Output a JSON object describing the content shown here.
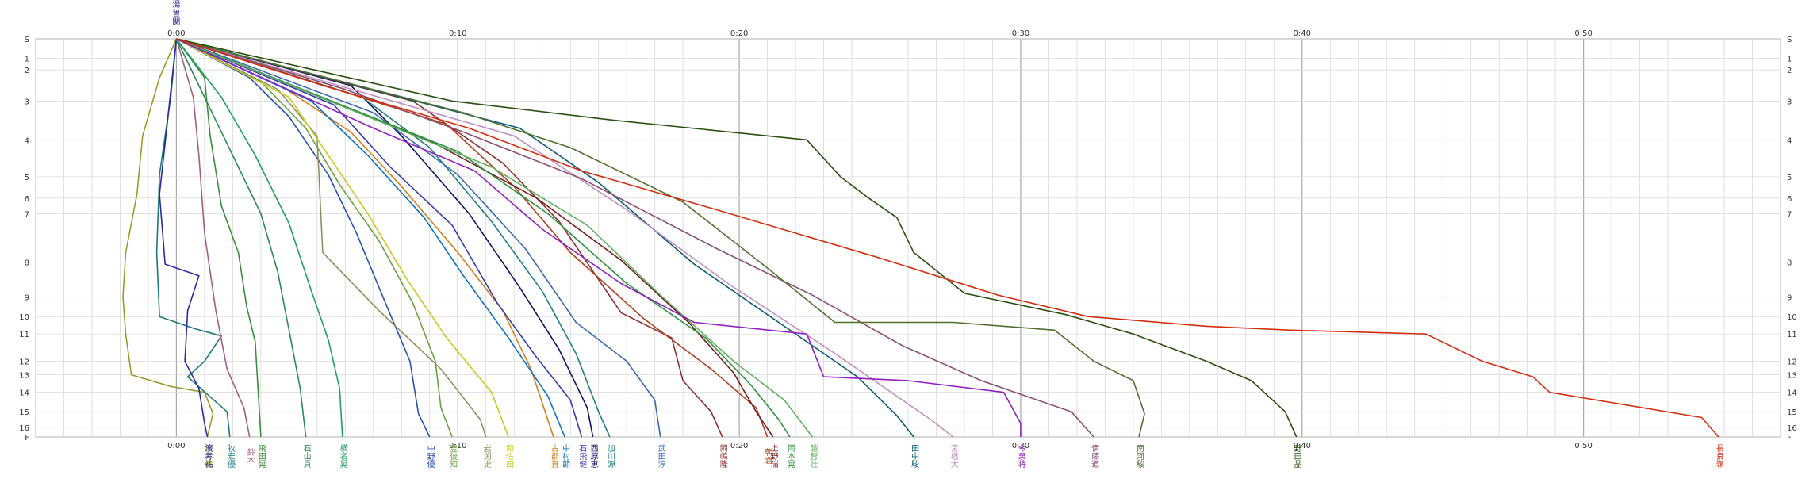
{
  "colors": {
    "background": "#ffffff",
    "grid_major": "#a8a8a8",
    "grid_minor": "#d9d9d9",
    "axis": "#404040",
    "text": "#333333"
  },
  "chart_data": {
    "type": "line",
    "title": "",
    "x_axis": {
      "unit": "minutes (elapsed time, m:ss)",
      "range": [
        -5,
        57
      ],
      "top_ticks": [
        0,
        10,
        20,
        30,
        40,
        50
      ],
      "top_tick_labels": [
        "0:00",
        "0:10",
        "0:20",
        "0:30",
        "0:40",
        "0:50"
      ],
      "bottom_tick_labels": [
        "0:00",
        "0:10",
        "0:20",
        "0:30",
        "0:40",
        "0:50"
      ]
    },
    "y_axis": {
      "unit": "control / station (S = start, F = finish)",
      "categories": [
        "S",
        "1",
        "2",
        "3",
        "4",
        "5",
        "6",
        "7",
        "8",
        "9",
        "10",
        "11",
        "12",
        "13",
        "14",
        "15",
        "16",
        "F"
      ],
      "category_position": [
        0,
        1,
        1.6,
        3.2,
        5.2,
        7.1,
        8.2,
        9.0,
        11.5,
        13.3,
        14.3,
        15.2,
        16.6,
        17.3,
        18.2,
        19.2,
        20.0,
        20.5
      ]
    },
    "grid": true,
    "start_marker_text": [
      "湯",
      "曽",
      "関"
    ],
    "series": [
      {
        "name": "松井健",
        "color": "#9b9b30",
        "points": [
          [
            0,
            0
          ],
          [
            -0.6,
            2
          ],
          [
            -1.2,
            5
          ],
          [
            -1.4,
            8
          ],
          [
            -1.8,
            11
          ],
          [
            -1.9,
            13.3
          ],
          [
            -1.8,
            15.2
          ],
          [
            -1.6,
            17.3
          ],
          [
            -0.2,
            17.9
          ],
          [
            1.0,
            18.2
          ],
          [
            1.3,
            19.3
          ],
          [
            1.1,
            20.5
          ]
        ]
      },
      {
        "name": "牧宏優",
        "color": "#1f7a7a",
        "points": [
          [
            0,
            0
          ],
          [
            -0.2,
            3
          ],
          [
            -0.6,
            7
          ],
          [
            -0.7,
            11
          ],
          [
            -0.6,
            14.3
          ],
          [
            0.6,
            14.9
          ],
          [
            1.6,
            15.3
          ],
          [
            1.0,
            16.6
          ],
          [
            0.4,
            17.4
          ],
          [
            1.8,
            19.2
          ],
          [
            1.9,
            20.5
          ]
        ]
      },
      {
        "name": "濱考祐",
        "color": "#2a2aa0",
        "points": [
          [
            0,
            0
          ],
          [
            -0.3,
            4
          ],
          [
            -0.6,
            8
          ],
          [
            -0.4,
            11.6
          ],
          [
            0.8,
            12.2
          ],
          [
            0.4,
            14
          ],
          [
            0.3,
            16.6
          ],
          [
            0.8,
            18
          ],
          [
            1.0,
            19.8
          ],
          [
            1.1,
            20.5
          ]
        ]
      },
      {
        "name": "飛田晃",
        "color": "#3c8c3c",
        "points": [
          [
            0,
            0
          ],
          [
            1.0,
            2
          ],
          [
            1.2,
            5
          ],
          [
            1.6,
            8.6
          ],
          [
            2.2,
            11
          ],
          [
            2.5,
            13.8
          ],
          [
            2.8,
            15.6
          ],
          [
            2.9,
            18
          ],
          [
            3.0,
            20.5
          ]
        ]
      },
      {
        "name": "鈴木",
        "color": "#a06080",
        "points": [
          [
            0,
            0
          ],
          [
            0.6,
            3
          ],
          [
            0.8,
            6
          ],
          [
            1.0,
            10
          ],
          [
            1.4,
            14
          ],
          [
            1.8,
            17
          ],
          [
            2.4,
            19
          ],
          [
            2.6,
            20.5
          ]
        ]
      },
      {
        "name": "石山貢",
        "color": "#2e8b57",
        "points": [
          [
            0,
            0
          ],
          [
            1.0,
            3
          ],
          [
            2.0,
            6
          ],
          [
            3.0,
            9
          ],
          [
            3.6,
            12
          ],
          [
            4.0,
            15
          ],
          [
            4.4,
            18
          ],
          [
            4.6,
            20.5
          ]
        ]
      },
      {
        "name": "横名晃",
        "color": "#20a060",
        "points": [
          [
            0,
            0
          ],
          [
            1.6,
            3
          ],
          [
            2.8,
            6
          ],
          [
            4.0,
            9.5
          ],
          [
            4.8,
            13
          ],
          [
            5.4,
            15.5
          ],
          [
            5.8,
            18
          ],
          [
            5.9,
            20.5
          ]
        ]
      },
      {
        "name": "中野優",
        "color": "#2a50b0",
        "points": [
          [
            0,
            0
          ],
          [
            2.6,
            2
          ],
          [
            4.0,
            4
          ],
          [
            5.4,
            7
          ],
          [
            6.4,
            10
          ],
          [
            7.4,
            13.5
          ],
          [
            8.3,
            16.6
          ],
          [
            8.6,
            19.3
          ],
          [
            9.0,
            20.5
          ]
        ]
      },
      {
        "name": "豊後知",
        "color": "#6aa040",
        "points": [
          [
            0,
            0
          ],
          [
            3.0,
            2.2
          ],
          [
            4.6,
            4.6
          ],
          [
            5.8,
            7.5
          ],
          [
            7.2,
            10.4
          ],
          [
            8.4,
            13.6
          ],
          [
            9.2,
            16.6
          ],
          [
            9.4,
            19
          ],
          [
            9.8,
            20.5
          ]
        ]
      },
      {
        "name": "岩渕史",
        "color": "#909060",
        "points": [
          [
            0,
            0
          ],
          [
            3.6,
            2.6
          ],
          [
            5.0,
            5
          ],
          [
            5.2,
            11
          ],
          [
            7.2,
            14
          ],
          [
            9.4,
            17
          ],
          [
            10.8,
            19.6
          ],
          [
            11.0,
            20.5
          ]
        ]
      },
      {
        "name": "和佐田",
        "color": "#c8c820",
        "points": [
          [
            0,
            0
          ],
          [
            4.0,
            3
          ],
          [
            5.4,
            6
          ],
          [
            6.8,
            9
          ],
          [
            8.2,
            12.4
          ],
          [
            9.6,
            15.4
          ],
          [
            11.2,
            18.2
          ],
          [
            11.8,
            20.5
          ]
        ]
      },
      {
        "name": "古郡直",
        "color": "#d08020",
        "points": [
          [
            0,
            0
          ],
          [
            3.8,
            2.5
          ],
          [
            6.2,
            4.8
          ],
          [
            8.0,
            7.6
          ],
          [
            10.0,
            11
          ],
          [
            11.6,
            14
          ],
          [
            12.6,
            17
          ],
          [
            13.4,
            20.5
          ]
        ]
      },
      {
        "name": "中村節",
        "color": "#1070c0",
        "points": [
          [
            0,
            0
          ],
          [
            4.8,
            3.2
          ],
          [
            6.8,
            6
          ],
          [
            8.8,
            9.2
          ],
          [
            10.2,
            12.2
          ],
          [
            11.8,
            15.4
          ],
          [
            13.2,
            18.4
          ],
          [
            13.8,
            20.5
          ]
        ]
      },
      {
        "name": "石飛健",
        "color": "#3a3aa8",
        "points": [
          [
            0,
            0
          ],
          [
            5.6,
            3.4
          ],
          [
            7.6,
            6.6
          ],
          [
            9.8,
            9.6
          ],
          [
            11.4,
            13.6
          ],
          [
            12.8,
            16.4
          ],
          [
            14.0,
            18.6
          ],
          [
            14.4,
            20.5
          ]
        ]
      },
      {
        "name": "西原恵",
        "color": "#101060",
        "points": [
          [
            0,
            0
          ],
          [
            6.2,
            2.4
          ],
          [
            8.0,
            5
          ],
          [
            10.4,
            9
          ],
          [
            12.2,
            12.8
          ],
          [
            13.6,
            16
          ],
          [
            14.6,
            19
          ],
          [
            14.8,
            20.5
          ]
        ]
      },
      {
        "name": "加川源",
        "color": "#208080",
        "points": [
          [
            0,
            0
          ],
          [
            6.6,
            3
          ],
          [
            9.0,
            5.6
          ],
          [
            11.2,
            9.4
          ],
          [
            13.0,
            13
          ],
          [
            14.2,
            16.2
          ],
          [
            15.0,
            19.2
          ],
          [
            15.4,
            20.5
          ]
        ]
      },
      {
        "name": "武田淳",
        "color": "#3a6ab0",
        "points": [
          [
            0,
            0
          ],
          [
            7.0,
            3.8
          ],
          [
            10.0,
            7
          ],
          [
            12.4,
            10.8
          ],
          [
            14.2,
            14.6
          ],
          [
            16.0,
            16.6
          ],
          [
            17.0,
            18.6
          ],
          [
            17.2,
            20.5
          ]
        ]
      },
      {
        "name": "岡嶋隆",
        "color": "#8b3030",
        "points": [
          [
            0,
            0
          ],
          [
            8.4,
            3.2
          ],
          [
            11.6,
            6.4
          ],
          [
            13.6,
            9.4
          ],
          [
            15.8,
            14.1
          ],
          [
            17.6,
            15.4
          ],
          [
            18.0,
            17.6
          ],
          [
            19.0,
            19.2
          ],
          [
            19.4,
            20.5
          ]
        ]
      },
      {
        "name": "朝倉",
        "color": "#b04020",
        "points": [
          [
            0,
            0
          ],
          [
            9.6,
            4.4
          ],
          [
            12.0,
            7.6
          ],
          [
            14.0,
            11
          ],
          [
            16.6,
            14.4
          ],
          [
            19.0,
            17
          ],
          [
            20.6,
            19
          ],
          [
            21.0,
            20.5
          ]
        ]
      },
      {
        "name": "上野瑞",
        "color": "#702020",
        "points": [
          [
            0,
            0
          ],
          [
            9.2,
            5.4
          ],
          [
            12.8,
            8.2
          ],
          [
            15.8,
            11.4
          ],
          [
            18.2,
            14.6
          ],
          [
            19.8,
            17.2
          ],
          [
            20.6,
            19.2
          ],
          [
            21.2,
            20.5
          ]
        ]
      },
      {
        "name": "岡本晃",
        "color": "#309040",
        "points": [
          [
            0,
            0
          ],
          [
            10.0,
            5.8
          ],
          [
            13.2,
            9
          ],
          [
            16.0,
            12.6
          ],
          [
            18.8,
            15.4
          ],
          [
            20.4,
            17.8
          ],
          [
            21.4,
            19.6
          ],
          [
            21.8,
            20.5
          ]
        ]
      },
      {
        "name": "越智壮",
        "color": "#60b060",
        "points": [
          [
            0,
            0
          ],
          [
            11.2,
            6.6
          ],
          [
            14.6,
            9.6
          ],
          [
            17.2,
            13.2
          ],
          [
            19.8,
            16.6
          ],
          [
            21.6,
            18.6
          ],
          [
            22.6,
            20.5
          ]
        ]
      },
      {
        "name": "田中駿",
        "color": "#0c5a70",
        "points": [
          [
            0,
            0
          ],
          [
            12.2,
            4.6
          ],
          [
            15.0,
            7.4
          ],
          [
            18.4,
            11.6
          ],
          [
            21.6,
            14.8
          ],
          [
            24.2,
            17.4
          ],
          [
            25.6,
            19.4
          ],
          [
            26.2,
            20.5
          ]
        ]
      },
      {
        "name": "宮橋大",
        "color": "#c090c0",
        "points": [
          [
            0,
            0
          ],
          [
            12.0,
            5
          ],
          [
            16.0,
            8.8
          ],
          [
            19.6,
            12.6
          ],
          [
            23.4,
            16.2
          ],
          [
            26.8,
            19.6
          ],
          [
            27.6,
            20.5
          ]
        ]
      },
      {
        "name": "今泉将",
        "color": "#9020c0",
        "points": [
          [
            0,
            0
          ],
          [
            7.0,
            4.6
          ],
          [
            10.6,
            6.8
          ],
          [
            13.0,
            9.8
          ],
          [
            15.8,
            12.6
          ],
          [
            18.4,
            14.6
          ],
          [
            22.4,
            15.2
          ],
          [
            23.0,
            17.4
          ],
          [
            26.0,
            17.6
          ],
          [
            29.4,
            18.2
          ],
          [
            30.0,
            19.8
          ],
          [
            30.0,
            20.5
          ]
        ]
      },
      {
        "name": "伊藤道",
        "color": "#8b5070",
        "points": [
          [
            0,
            0
          ],
          [
            6.0,
            2.6
          ],
          [
            10.2,
            4.8
          ],
          [
            14.4,
            7.2
          ],
          [
            19.2,
            10.8
          ],
          [
            22.6,
            13.2
          ],
          [
            25.8,
            15.8
          ],
          [
            28.6,
            17.6
          ],
          [
            31.8,
            19.2
          ],
          [
            32.6,
            20.5
          ]
        ]
      },
      {
        "name": "南河駿",
        "color": "#507030",
        "points": [
          [
            0,
            0
          ],
          [
            10.2,
            3.8
          ],
          [
            14.0,
            5.6
          ],
          [
            18.0,
            8.4
          ],
          [
            21.0,
            11.8
          ],
          [
            23.4,
            14.6
          ],
          [
            27.6,
            14.6
          ],
          [
            31.2,
            15
          ],
          [
            32.6,
            16.6
          ],
          [
            34.0,
            17.6
          ],
          [
            34.4,
            19.3
          ],
          [
            34.2,
            20.5
          ]
        ]
      },
      {
        "name": "野田晶",
        "color": "#2a5010",
        "points": [
          [
            0,
            0
          ],
          [
            9.8,
            3.2
          ],
          [
            15.6,
            4.2
          ],
          [
            22.4,
            5.2
          ],
          [
            23.6,
            7.1
          ],
          [
            24.6,
            8.2
          ],
          [
            25.6,
            9.2
          ],
          [
            26.2,
            11
          ],
          [
            28.0,
            13.1
          ],
          [
            31.6,
            14.2
          ],
          [
            34.0,
            15.2
          ],
          [
            36.6,
            16.6
          ],
          [
            38.2,
            17.6
          ],
          [
            39.4,
            19.2
          ],
          [
            39.8,
            20.5
          ]
        ]
      },
      {
        "name": "長良嶺",
        "color": "#d03010",
        "points": [
          [
            0,
            0
          ],
          [
            5.2,
            2.4
          ],
          [
            10.4,
            4.6
          ],
          [
            14.4,
            6.8
          ],
          [
            19.2,
            8.8
          ],
          [
            24.8,
            11.2
          ],
          [
            29.2,
            13.2
          ],
          [
            32.4,
            14.3
          ],
          [
            36.6,
            14.8
          ],
          [
            39.6,
            15
          ],
          [
            44.4,
            15.2
          ],
          [
            46.4,
            16.6
          ],
          [
            48.2,
            17.4
          ],
          [
            48.8,
            18.2
          ],
          [
            54.2,
            19.5
          ],
          [
            54.8,
            20.5
          ]
        ]
      }
    ]
  }
}
